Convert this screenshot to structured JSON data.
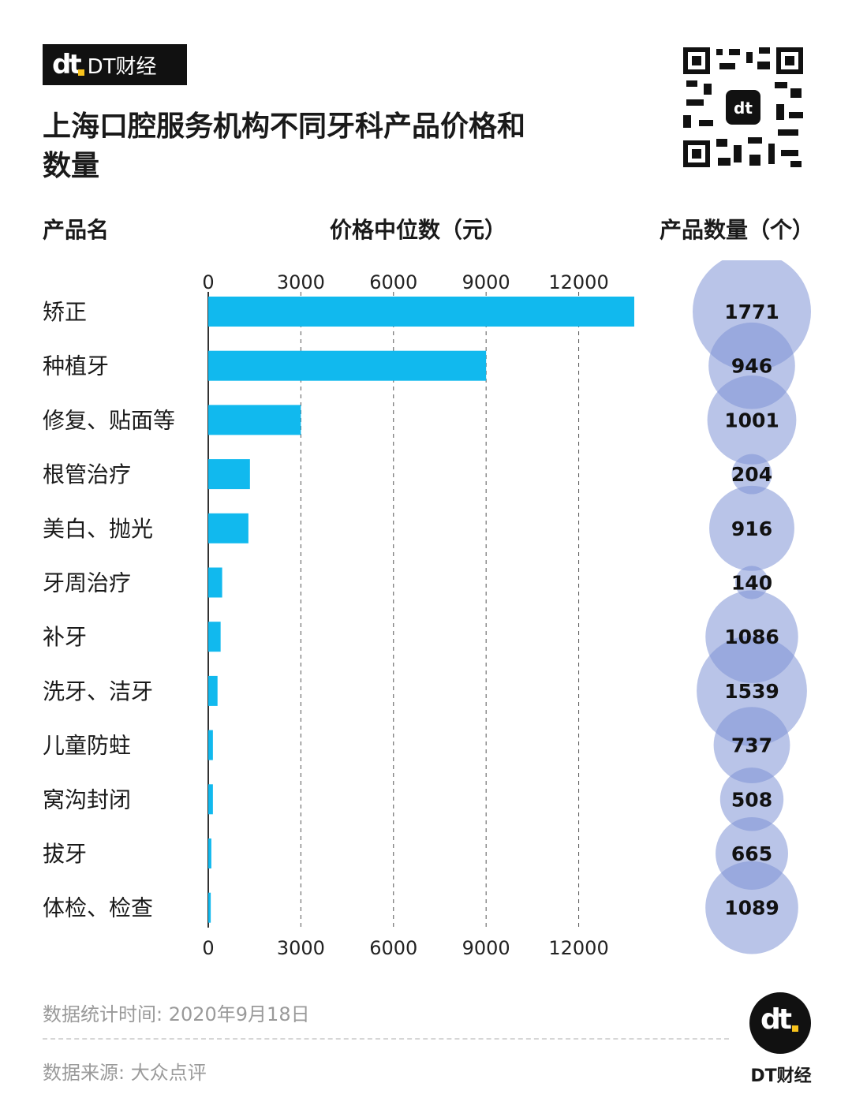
{
  "brand": {
    "logo_text": "dt",
    "name": "DT财经"
  },
  "title": "上海口腔服务机构不同牙科产品价格和数量",
  "headers": {
    "product": "产品名",
    "price": "价格中位数（元）",
    "count": "产品数量（个）"
  },
  "colors": {
    "bar": "#11b9ee",
    "bubble": "#7f93d6",
    "axis": "#333333",
    "grid": "#555555"
  },
  "chart_data": {
    "type": "bar",
    "orientation": "horizontal",
    "categories": [
      "矫正",
      "种植牙",
      "修复、贴面等",
      "根管治疗",
      "美白、抛光",
      "牙周治疗",
      "补牙",
      "洗牙、洁牙",
      "儿童防蛀",
      "窝沟封闭",
      "拔牙",
      "体检、检查"
    ],
    "series": [
      {
        "values": [
          13800,
          9000,
          3000,
          1350,
          1300,
          450,
          400,
          300,
          150,
          150,
          100,
          80
        ]
      },
      {
        "values": [
          1771,
          946,
          1001,
          204,
          916,
          140,
          1086,
          1539,
          737,
          508,
          665,
          1089
        ]
      }
    ],
    "xticks": [
      0,
      3000,
      6000,
      9000,
      12000
    ],
    "xlim": [
      0,
      13800
    ],
    "grid": true
  },
  "footer": {
    "date_label": "数据统计时间: 2020年9月18日",
    "source_label": "数据来源: 大众点评",
    "brand": "DT财经"
  }
}
